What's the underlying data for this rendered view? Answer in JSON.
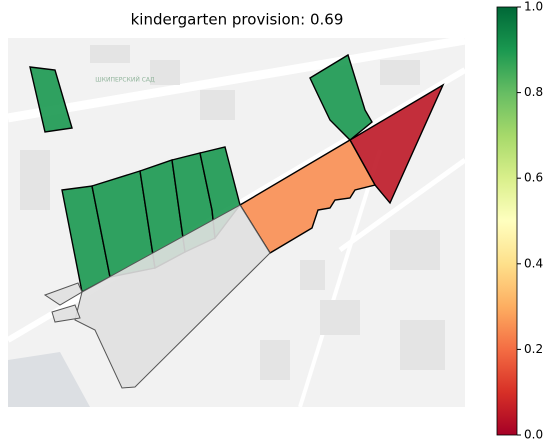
{
  "title": "kindergarten provision: 0.69",
  "map_labels": [
    "ШКИПЕРСКИЙ САД"
  ],
  "colorbar": {
    "lim": [
      0,
      1
    ],
    "ticks": [
      {
        "value": 0,
        "label": "0.0"
      },
      {
        "value": 0.2,
        "label": "0.2"
      },
      {
        "value": 0.4,
        "label": "0.4"
      },
      {
        "value": 0.6,
        "label": "0.6"
      },
      {
        "value": 0.8,
        "label": "0.8"
      },
      {
        "value": 1,
        "label": "1.0"
      }
    ],
    "colormap": "RdYlGn"
  },
  "areas": [
    {
      "value": 0.9
    },
    {
      "value": 0.9
    },
    {
      "value": 0.05
    },
    {
      "value": 0.25
    },
    {
      "value": 0.9
    },
    {
      "value": 0.9
    },
    {
      "value": 0.9
    },
    {
      "value": 0.9
    },
    {
      "value": 0.9
    },
    {
      "value": null
    },
    {
      "value": null
    },
    {
      "value": null
    }
  ]
}
